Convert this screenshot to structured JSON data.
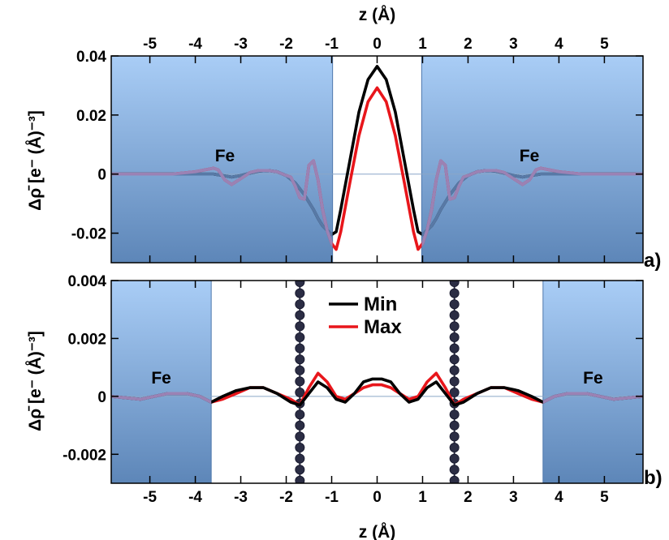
{
  "colors": {
    "min": "#000000",
    "max": "#e8161b",
    "fe_region": "#7aa7dd",
    "atom": "#2b2d44"
  },
  "chart_data": [
    {
      "type": "line",
      "panel_tag": "a)",
      "xlabel": "z (Å)",
      "xlabel_position": "top",
      "ylabel": "Δρ̄ [e⁻ (Å)⁻³]",
      "xlim": [
        -5.85,
        5.85
      ],
      "ylim": [
        -0.03,
        0.04
      ],
      "xticks": [
        {
          "value": -5,
          "label": "-5"
        },
        {
          "value": -4,
          "label": "-4"
        },
        {
          "value": -3,
          "label": "-3"
        },
        {
          "value": -2,
          "label": "-2"
        },
        {
          "value": -1,
          "label": "-1"
        },
        {
          "value": 0,
          "label": "0"
        },
        {
          "value": 1,
          "label": "1"
        },
        {
          "value": 2,
          "label": "2"
        },
        {
          "value": 3,
          "label": "3"
        },
        {
          "value": 4,
          "label": "4"
        },
        {
          "value": 5,
          "label": "5"
        }
      ],
      "yticks": [
        {
          "value": 0.04,
          "label": "0.04"
        },
        {
          "value": 0.02,
          "label": "0.02"
        },
        {
          "value": 0,
          "label": "0"
        },
        {
          "value": -0.02,
          "label": "-0.02"
        }
      ],
      "regions": [
        {
          "label": "Fe",
          "x_from": -5.85,
          "x_to": -0.98,
          "label_at": [
            -3.35,
            0.0043
          ]
        },
        {
          "label": "Fe",
          "x_from": 0.98,
          "x_to": 5.85,
          "label_at": [
            3.35,
            0.0043
          ]
        }
      ],
      "series": [
        {
          "color_key": "min",
          "x": [
            -5.85,
            -5.0,
            -4.5,
            -4.0,
            -3.6,
            -3.4,
            -3.2,
            -3.0,
            -2.8,
            -2.6,
            -2.4,
            -2.2,
            -2.0,
            -1.8,
            -1.6,
            -1.4,
            -1.3,
            -1.2,
            -1.1,
            -1.0,
            -0.9,
            -0.8,
            -0.6,
            -0.4,
            -0.2,
            0.0,
            0.2,
            0.4,
            0.6,
            0.8,
            0.9,
            1.0,
            1.1,
            1.2,
            1.3,
            1.4,
            1.6,
            1.8,
            2.0,
            2.2,
            2.4,
            2.6,
            2.8,
            3.0,
            3.2,
            3.4,
            3.6,
            4.0,
            4.5,
            5.0,
            5.85
          ],
          "values": [
            0,
            0,
            0,
            0,
            0,
            -0.0005,
            -0.001,
            -0.0005,
            0.0003,
            0.001,
            0.0012,
            0.0008,
            -0.0005,
            -0.003,
            -0.007,
            -0.012,
            -0.015,
            -0.0175,
            -0.019,
            -0.0205,
            -0.0195,
            -0.012,
            0.0045,
            0.021,
            0.032,
            0.0365,
            0.032,
            0.021,
            0.0045,
            -0.012,
            -0.0195,
            -0.0205,
            -0.019,
            -0.0175,
            -0.015,
            -0.012,
            -0.007,
            -0.003,
            -0.0005,
            0.0008,
            0.0012,
            0.001,
            0.0003,
            -0.0005,
            -0.001,
            -0.0005,
            0,
            0,
            0,
            0,
            0
          ]
        },
        {
          "color_key": "max",
          "x": [
            -5.85,
            -5.0,
            -4.5,
            -4.0,
            -3.6,
            -3.5,
            -3.35,
            -3.2,
            -3.0,
            -2.8,
            -2.6,
            -2.4,
            -2.2,
            -2.0,
            -1.9,
            -1.8,
            -1.7,
            -1.6,
            -1.5,
            -1.4,
            -1.3,
            -1.2,
            -1.1,
            -1.0,
            -0.9,
            -0.8,
            -0.6,
            -0.4,
            -0.2,
            0.0,
            0.2,
            0.4,
            0.6,
            0.8,
            0.9,
            1.0,
            1.1,
            1.2,
            1.3,
            1.4,
            1.5,
            1.6,
            1.7,
            1.8,
            1.9,
            2.0,
            2.2,
            2.4,
            2.6,
            2.8,
            3.0,
            3.2,
            3.35,
            3.5,
            3.6,
            4.0,
            4.5,
            5.0,
            5.85
          ],
          "values": [
            0,
            0,
            0,
            0.0008,
            0.002,
            0.0015,
            -0.002,
            -0.0035,
            -0.0015,
            0.0005,
            0.0012,
            0.0012,
            0.0008,
            -0.0005,
            -0.001,
            -0.004,
            -0.008,
            -0.0085,
            0.003,
            0.0045,
            -0.002,
            -0.012,
            -0.019,
            -0.0235,
            -0.0255,
            -0.0195,
            -0.003,
            0.013,
            0.0245,
            0.0292,
            0.0245,
            0.013,
            -0.003,
            -0.0195,
            -0.0255,
            -0.0235,
            -0.019,
            -0.012,
            -0.002,
            0.0045,
            0.003,
            -0.0085,
            -0.008,
            -0.004,
            -0.001,
            -0.0005,
            0.0008,
            0.0012,
            0.0012,
            0.0005,
            -0.0015,
            -0.0035,
            -0.002,
            0.0015,
            0.002,
            0.0008,
            0,
            0,
            0
          ]
        }
      ]
    },
    {
      "type": "line",
      "panel_tag": "b)",
      "xlabel": "z (Å)",
      "xlabel_position": "bottom",
      "ylabel": "Δρ̄ [e⁻ (Å)⁻³]",
      "xlim": [
        -5.85,
        5.85
      ],
      "ylim": [
        -0.003,
        0.004
      ],
      "xticks": [
        {
          "value": -5,
          "label": "-5"
        },
        {
          "value": -4,
          "label": "-4"
        },
        {
          "value": -3,
          "label": "-3"
        },
        {
          "value": -2,
          "label": "-2"
        },
        {
          "value": -1,
          "label": "-1"
        },
        {
          "value": 0,
          "label": "0"
        },
        {
          "value": 1,
          "label": "1"
        },
        {
          "value": 2,
          "label": "2"
        },
        {
          "value": 3,
          "label": "3"
        },
        {
          "value": 4,
          "label": "4"
        },
        {
          "value": 5,
          "label": "5"
        }
      ],
      "yticks": [
        {
          "value": 0.004,
          "label": "0.004"
        },
        {
          "value": 0.002,
          "label": "0.002"
        },
        {
          "value": 0,
          "label": "0"
        },
        {
          "value": -0.002,
          "label": "-0.002"
        }
      ],
      "regions": [
        {
          "label": "Fe",
          "x_from": -5.85,
          "x_to": -3.65,
          "label_at": [
            -4.75,
            0.00045
          ]
        },
        {
          "label": "Fe",
          "x_from": 3.65,
          "x_to": 5.85,
          "label_at": [
            4.75,
            0.00045
          ]
        }
      ],
      "atom_chains": [
        {
          "x": -1.7
        },
        {
          "x": 1.7
        }
      ],
      "legend": {
        "position": "top-center",
        "entries": [
          {
            "label": "Min",
            "color_key": "min"
          },
          {
            "label": "Max",
            "color_key": "max"
          }
        ]
      },
      "series": [
        {
          "name": "Min",
          "color_key": "min",
          "x": [
            -5.85,
            -5.2,
            -4.6,
            -4.2,
            -3.9,
            -3.65,
            -3.4,
            -3.1,
            -2.8,
            -2.5,
            -2.2,
            -1.9,
            -1.7,
            -1.5,
            -1.3,
            -1.1,
            -0.9,
            -0.7,
            -0.5,
            -0.3,
            -0.1,
            0.0,
            0.1,
            0.3,
            0.5,
            0.7,
            0.9,
            1.1,
            1.3,
            1.5,
            1.7,
            1.9,
            2.2,
            2.5,
            2.8,
            3.1,
            3.4,
            3.65,
            3.9,
            4.2,
            4.6,
            5.2,
            5.85
          ],
          "values": [
            0,
            -0.0001,
            0.0001,
            0.0001,
            0,
            -0.0002,
            0,
            0.0002,
            0.0003,
            0.0003,
            0.0001,
            -0.0002,
            -0.0003,
            0.0001,
            0.0005,
            0.0003,
            -0.0001,
            -0.0002,
            0.0001,
            0.0005,
            0.0006,
            0.0006,
            0.0006,
            0.0005,
            0.0001,
            -0.0002,
            -0.0001,
            0.0003,
            0.0005,
            0.0001,
            -0.0003,
            -0.0002,
            0.0001,
            0.0003,
            0.0003,
            0.0002,
            0,
            -0.0002,
            0,
            0.0001,
            0.0001,
            -0.0001,
            0
          ]
        },
        {
          "name": "Max",
          "color_key": "max",
          "x": [
            -5.85,
            -5.2,
            -4.6,
            -4.2,
            -3.9,
            -3.65,
            -3.4,
            -3.1,
            -2.8,
            -2.5,
            -2.2,
            -1.9,
            -1.7,
            -1.5,
            -1.3,
            -1.1,
            -0.9,
            -0.7,
            -0.5,
            -0.3,
            -0.1,
            0.0,
            0.1,
            0.3,
            0.5,
            0.7,
            0.9,
            1.1,
            1.3,
            1.5,
            1.7,
            1.9,
            2.2,
            2.5,
            2.8,
            3.1,
            3.4,
            3.65,
            3.9,
            4.2,
            4.6,
            5.2,
            5.85
          ],
          "values": [
            0,
            -0.0001,
            0.0001,
            0.0001,
            0,
            -0.0002,
            -0.0001,
            0.0001,
            0.0003,
            0.0003,
            0.0001,
            -0.0001,
            -0.0003,
            0.0003,
            0.0008,
            0.0005,
            0,
            -0.0001,
            0.0001,
            0.0003,
            0.0004,
            0.0004,
            0.0004,
            0.0003,
            0.0001,
            -0.0001,
            0,
            0.0005,
            0.0008,
            0.0003,
            -0.0003,
            -0.0001,
            0.0001,
            0.0003,
            0.0003,
            0.0001,
            -0.0001,
            -0.0002,
            0,
            0.0001,
            0.0001,
            -0.0001,
            0
          ]
        }
      ]
    }
  ]
}
